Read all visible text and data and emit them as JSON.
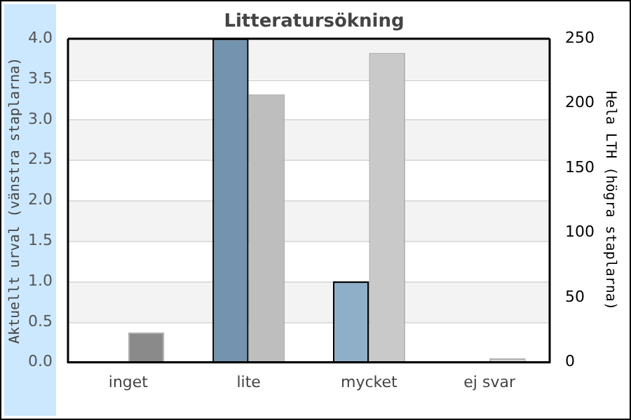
{
  "chart_data": {
    "type": "bar",
    "title": "Litteratursökning",
    "ylabel": "Aktuellt urval (vänstra staplarna)",
    "y2label": "Hela LTH (högra staplarna)",
    "categories": [
      "inget",
      "lite",
      "mycket",
      "ej svar"
    ],
    "series": [
      {
        "colors": [
          "#7393ae",
          "#7393ae",
          "#8fafc9",
          "#8fafc9"
        ],
        "values": [
          0,
          4.0,
          1.0,
          0
        ]
      },
      {
        "colors": [
          "#8a8a8a",
          "#bebebe",
          "#c9c9c9",
          "#d9d9d9"
        ],
        "values": [
          23,
          207,
          239,
          3
        ],
        "axis": "y2"
      }
    ],
    "ylim": [
      0,
      4
    ],
    "yticks": [
      {
        "value": 0,
        "label": "0.0"
      },
      0.5,
      {
        "value": 1,
        "label": "1.0"
      },
      1.5,
      {
        "value": 2,
        "label": "2.0"
      },
      2.5,
      {
        "value": 3,
        "label": "3.0"
      },
      3.5,
      {
        "value": 4,
        "label": "4.0"
      }
    ],
    "y2lim": [
      0,
      250
    ],
    "y2ticks": [
      0,
      50,
      100,
      150,
      200,
      250
    ],
    "grid": "y",
    "legend": false
  }
}
